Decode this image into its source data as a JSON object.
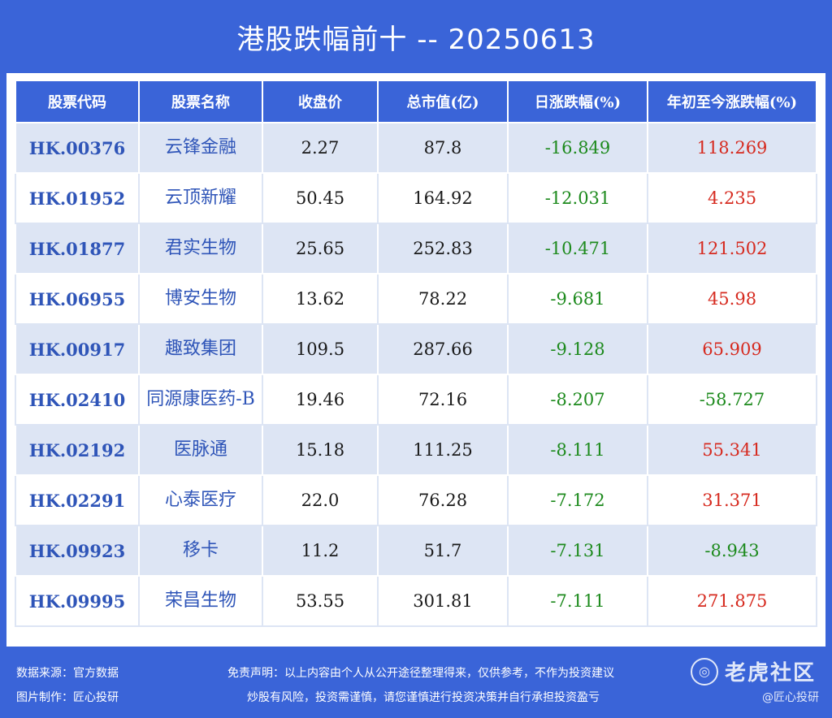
{
  "title": "港股跌幅前十 -- 20250613",
  "table": {
    "headers": [
      "股票代码",
      "股票名称",
      "收盘价",
      "总市值(亿)",
      "日涨跌幅(%)",
      "年初至今涨跌幅(%)"
    ],
    "rows": [
      {
        "code": "HK.00376",
        "name": "云锋金融",
        "close": "2.27",
        "mcap": "87.8",
        "day": "-16.849",
        "ytd": "118.269"
      },
      {
        "code": "HK.01952",
        "name": "云顶新耀",
        "close": "50.45",
        "mcap": "164.92",
        "day": "-12.031",
        "ytd": "4.235"
      },
      {
        "code": "HK.01877",
        "name": "君实生物",
        "close": "25.65",
        "mcap": "252.83",
        "day": "-10.471",
        "ytd": "121.502"
      },
      {
        "code": "HK.06955",
        "name": "博安生物",
        "close": "13.62",
        "mcap": "78.22",
        "day": "-9.681",
        "ytd": "45.98"
      },
      {
        "code": "HK.00917",
        "name": "趣致集团",
        "close": "109.5",
        "mcap": "287.66",
        "day": "-9.128",
        "ytd": "65.909"
      },
      {
        "code": "HK.02410",
        "name": "同源康医药-B",
        "close": "19.46",
        "mcap": "72.16",
        "day": "-8.207",
        "ytd": "-58.727"
      },
      {
        "code": "HK.02192",
        "name": "医脉通",
        "close": "15.18",
        "mcap": "111.25",
        "day": "-8.111",
        "ytd": "55.341"
      },
      {
        "code": "HK.02291",
        "name": "心泰医疗",
        "close": "22.0",
        "mcap": "76.28",
        "day": "-7.172",
        "ytd": "31.371"
      },
      {
        "code": "HK.09923",
        "name": "移卡",
        "close": "11.2",
        "mcap": "51.7",
        "day": "-7.131",
        "ytd": "-8.943"
      },
      {
        "code": "HK.09995",
        "name": "荣昌生物",
        "close": "53.55",
        "mcap": "301.81",
        "day": "-7.111",
        "ytd": "271.875"
      }
    ]
  },
  "footer": {
    "source": "数据来源：官方数据",
    "maker": "图片制作：匠心投研",
    "disclaimer_1": "免责声明：以上内容由个人从公开途径整理得来，仅供参考，不作为投资建议",
    "disclaimer_2": "炒股有风险，投资需谨慎，请您谨慎进行投资决策并自行承担投资盈亏"
  },
  "watermark": {
    "icon": "tiger-logo-icon",
    "text": "老虎社区",
    "sub": "@匠心投研"
  },
  "colors": {
    "background": "#3a64d8",
    "header": "#3a64d8",
    "row_alt": "#dde5f4",
    "code_text": "#2f55b8",
    "negative": "#1d8a1d",
    "positive": "#d62a1f"
  }
}
